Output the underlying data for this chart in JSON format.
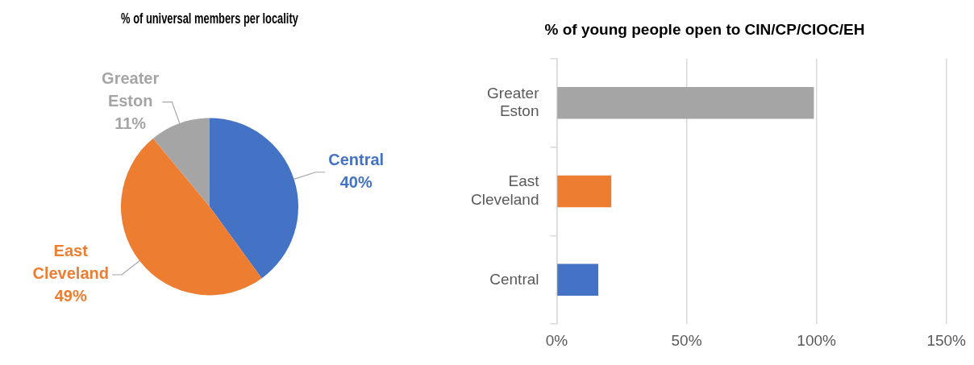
{
  "chart_data": [
    {
      "type": "pie",
      "title": "% of universal members per locality",
      "categories": [
        "Central",
        "East Cleveland",
        "Greater Eston"
      ],
      "values": [
        40,
        49,
        11
      ],
      "colors": [
        "#4472c4",
        "#ed7d31",
        "#a5a5a5"
      ],
      "value_labels": [
        "40%",
        "49%",
        "11%"
      ],
      "legend": false
    },
    {
      "type": "bar",
      "orientation": "horizontal",
      "title": "% of young people open to CIN/CP/CIOC/EH",
      "categories": [
        "Greater Eston",
        "East Cleveland",
        "Central"
      ],
      "values": [
        99,
        21,
        16
      ],
      "colors": [
        "#a5a5a5",
        "#ed7d31",
        "#4472c4"
      ],
      "xlim": [
        0,
        150
      ],
      "xticks": [
        {
          "value": 0,
          "label": "0%"
        },
        {
          "value": 50,
          "label": "50%"
        },
        {
          "value": 100,
          "label": "100%"
        },
        {
          "value": 150,
          "label": "150%"
        }
      ],
      "grid": "x",
      "legend": false
    }
  ]
}
